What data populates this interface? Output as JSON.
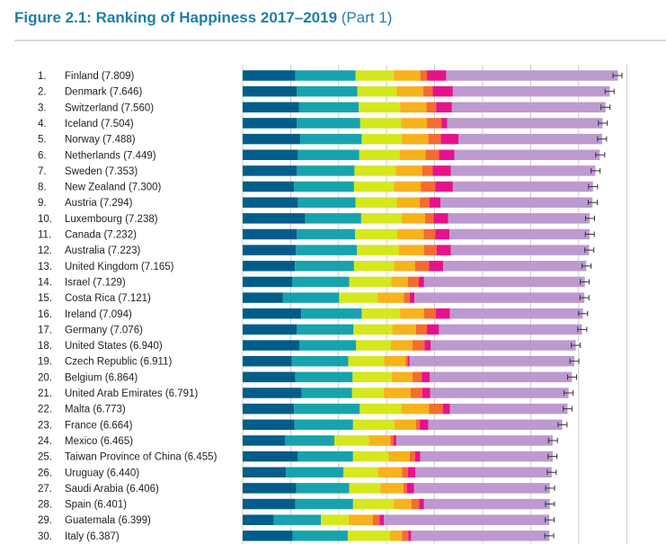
{
  "figure": {
    "title": "Figure 2.1: Ranking of Happiness 2017–2019",
    "part": "(Part 1)"
  },
  "chart_data": {
    "type": "bar",
    "orientation": "horizontal",
    "stacked": true,
    "grid": true,
    "error_bars": true,
    "segment_colors": [
      "#005d89",
      "#17a3ad",
      "#d4e81d",
      "#f7b21c",
      "#f46c30",
      "#e6128c",
      "#bc9ad0"
    ],
    "rows": [
      {
        "rank": "1.",
        "label": "Finland (7.809)",
        "score": 7.809,
        "segments": [
          1.1,
          1.25,
          0.8,
          0.55,
          0.14,
          0.4,
          3.58
        ]
      },
      {
        "rank": "2.",
        "label": "Denmark (7.646)",
        "score": 7.646,
        "segments": [
          1.13,
          1.26,
          0.82,
          0.55,
          0.2,
          0.42,
          3.27
        ]
      },
      {
        "rank": "3.",
        "label": "Switzerland (7.560)",
        "score": 7.56,
        "segments": [
          1.17,
          1.25,
          0.86,
          0.55,
          0.2,
          0.33,
          3.2
        ]
      },
      {
        "rank": "4.",
        "label": "Iceland (7.504)",
        "score": 7.504,
        "segments": [
          1.13,
          1.32,
          0.85,
          0.54,
          0.3,
          0.12,
          3.24
        ]
      },
      {
        "rank": "5.",
        "label": "Norway (7.488)",
        "score": 7.488,
        "segments": [
          1.2,
          1.28,
          0.83,
          0.56,
          0.26,
          0.37,
          2.99
        ]
      },
      {
        "rank": "6.",
        "label": "Netherlands (7.449)",
        "score": 7.449,
        "segments": [
          1.15,
          1.28,
          0.84,
          0.54,
          0.28,
          0.32,
          3.03
        ]
      },
      {
        "rank": "7.",
        "label": "Sweden (7.353)",
        "score": 7.353,
        "segments": [
          1.13,
          1.2,
          0.86,
          0.55,
          0.22,
          0.38,
          3.01
        ]
      },
      {
        "rank": "8.",
        "label": "New Zealand (7.300)",
        "score": 7.3,
        "segments": [
          1.07,
          1.25,
          0.83,
          0.56,
          0.3,
          0.37,
          2.92
        ]
      },
      {
        "rank": "9.",
        "label": "Austria (7.294)",
        "score": 7.294,
        "segments": [
          1.15,
          1.2,
          0.86,
          0.48,
          0.2,
          0.23,
          3.17
        ]
      },
      {
        "rank": "10.",
        "label": "Luxembourg (7.238)",
        "score": 7.238,
        "segments": [
          1.3,
          1.17,
          0.84,
          0.49,
          0.18,
          0.3,
          2.95
        ]
      },
      {
        "rank": "11.",
        "label": "Canada (7.232)",
        "score": 7.232,
        "segments": [
          1.13,
          1.21,
          0.88,
          0.55,
          0.24,
          0.3,
          2.92
        ]
      },
      {
        "rank": "12.",
        "label": "Australia (7.223)",
        "score": 7.223,
        "segments": [
          1.11,
          1.27,
          0.87,
          0.53,
          0.26,
          0.3,
          2.88
        ]
      },
      {
        "rank": "13.",
        "label": "United Kingdom (7.165)",
        "score": 7.165,
        "segments": [
          1.09,
          1.23,
          0.83,
          0.44,
          0.29,
          0.3,
          2.98
        ]
      },
      {
        "rank": "14.",
        "label": "Israel (7.129)",
        "score": 7.129,
        "segments": [
          1.03,
          1.19,
          0.88,
          0.34,
          0.23,
          0.11,
          3.35
        ]
      },
      {
        "rank": "15.",
        "label": "Costa Rica (7.121)",
        "score": 7.121,
        "segments": [
          0.84,
          1.17,
          0.8,
          0.55,
          0.12,
          0.1,
          3.54
        ]
      },
      {
        "rank": "16.",
        "label": "Ireland (7.094)",
        "score": 7.094,
        "segments": [
          1.22,
          1.26,
          0.8,
          0.5,
          0.24,
          0.3,
          2.77
        ]
      },
      {
        "rank": "17.",
        "label": "Germany (7.076)",
        "score": 7.076,
        "segments": [
          1.13,
          1.18,
          0.81,
          0.49,
          0.23,
          0.25,
          2.98
        ]
      },
      {
        "rank": "18.",
        "label": "United States (6.940)",
        "score": 6.94,
        "segments": [
          1.18,
          1.18,
          0.73,
          0.45,
          0.25,
          0.13,
          3.02
        ]
      },
      {
        "rank": "19.",
        "label": "Czech Republic (6.911)",
        "score": 6.911,
        "segments": [
          1.02,
          1.18,
          0.75,
          0.45,
          0.04,
          0.04,
          3.43
        ]
      },
      {
        "rank": "20.",
        "label": "Belgium (6.864)",
        "score": 6.864,
        "segments": [
          1.1,
          1.19,
          0.82,
          0.43,
          0.19,
          0.17,
          2.96
        ]
      },
      {
        "rank": "21.",
        "label": "United Arab Emirates (6.791)",
        "score": 6.791,
        "segments": [
          1.23,
          1.05,
          0.66,
          0.56,
          0.24,
          0.17,
          2.88
        ]
      },
      {
        "rank": "22.",
        "label": "Malta (6.773)",
        "score": 6.773,
        "segments": [
          1.07,
          1.37,
          0.86,
          0.58,
          0.29,
          0.15,
          2.45
        ]
      },
      {
        "rank": "23.",
        "label": "France (6.664)",
        "score": 6.664,
        "segments": [
          1.08,
          1.22,
          0.86,
          0.45,
          0.08,
          0.18,
          2.79
        ]
      },
      {
        "rank": "24.",
        "label": "Mexico (6.465)",
        "score": 6.465,
        "segments": [
          0.88,
          1.03,
          0.72,
          0.45,
          0.06,
          0.06,
          3.26
        ]
      },
      {
        "rank": "25.",
        "label": "Taiwan Province of China (6.455)",
        "score": 6.455,
        "segments": [
          1.15,
          1.15,
          0.73,
          0.45,
          0.11,
          0.11,
          2.76
        ]
      },
      {
        "rank": "26.",
        "label": "Uruguay (6.440)",
        "score": 6.44,
        "segments": [
          0.9,
          1.2,
          0.72,
          0.5,
          0.12,
          0.16,
          2.84
        ]
      },
      {
        "rank": "27.",
        "label": "Saudi Arabia (6.406)",
        "score": 6.406,
        "segments": [
          1.12,
          1.1,
          0.65,
          0.48,
          0.07,
          0.15,
          2.83
        ]
      },
      {
        "rank": "28.",
        "label": "Spain (6.401)",
        "score": 6.401,
        "segments": [
          1.1,
          1.2,
          0.85,
          0.37,
          0.16,
          0.1,
          2.62
        ]
      },
      {
        "rank": "29.",
        "label": "Guatemala (6.399)",
        "score": 6.399,
        "segments": [
          0.65,
          0.98,
          0.58,
          0.5,
          0.14,
          0.09,
          3.45
        ]
      },
      {
        "rank": "30.",
        "label": "Italy (6.387)",
        "score": 6.387,
        "segments": [
          1.04,
          1.15,
          0.88,
          0.25,
          0.13,
          0.06,
          2.88
        ]
      }
    ]
  }
}
